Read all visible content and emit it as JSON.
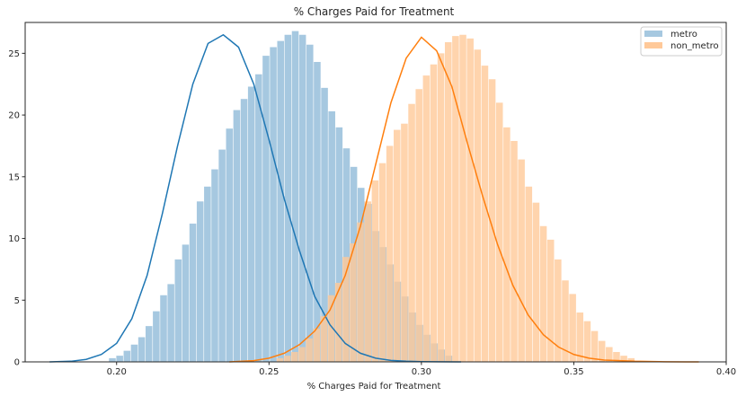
{
  "chart_data": {
    "type": "histogram_kde",
    "title": "% Charges Paid for Treatment",
    "xlabel": "% Charges Paid for Treatment",
    "ylabel": "",
    "xlim": [
      0.17,
      0.4
    ],
    "ylim": [
      0,
      27.5
    ],
    "xticks": [
      {
        "value": 0.2,
        "label": "0.20"
      },
      {
        "value": 0.25,
        "label": "0.25"
      },
      {
        "value": 0.3,
        "label": "0.30"
      },
      {
        "value": 0.35,
        "label": "0.35"
      },
      {
        "value": 0.4,
        "label": "0.40"
      }
    ],
    "yticks": [
      {
        "value": 0,
        "label": "0"
      },
      {
        "value": 5,
        "label": "5"
      },
      {
        "value": 10,
        "label": "10"
      },
      {
        "value": 15,
        "label": "15"
      },
      {
        "value": 20,
        "label": "20"
      },
      {
        "value": 25,
        "label": "25"
      }
    ],
    "grid": false,
    "legend_position": "top-right",
    "series": [
      {
        "name": "metro",
        "color": "#1f77b4",
        "bar_color": "#a6c8e0",
        "bin_width": 0.0024,
        "bins_start": 0.1975,
        "bar_heights": [
          0.3,
          0.5,
          0.9,
          1.4,
          2.0,
          2.9,
          4.1,
          5.4,
          6.3,
          8.3,
          9.5,
          11.2,
          13.0,
          14.2,
          15.6,
          17.2,
          18.9,
          20.4,
          21.3,
          22.3,
          23.3,
          24.8,
          25.5,
          26.0,
          26.5,
          26.8,
          26.5,
          25.7,
          24.3,
          22.2,
          20.3,
          19.0,
          17.3,
          15.8,
          14.1,
          12.8,
          10.6,
          9.3,
          7.9,
          6.5,
          5.3,
          4.0,
          3.0,
          2.2,
          1.5,
          1.0,
          0.5
        ],
        "kde_x": [
          0.178,
          0.185,
          0.19,
          0.195,
          0.2,
          0.205,
          0.21,
          0.215,
          0.22,
          0.225,
          0.23,
          0.235,
          0.24,
          0.245,
          0.25,
          0.255,
          0.26,
          0.265,
          0.27,
          0.275,
          0.28,
          0.285,
          0.29,
          0.295,
          0.3,
          0.305,
          0.313
        ],
        "kde_y": [
          0.0,
          0.05,
          0.2,
          0.6,
          1.5,
          3.5,
          7.0,
          12.0,
          17.5,
          22.5,
          25.8,
          26.5,
          25.5,
          22.5,
          18.0,
          13.2,
          9.0,
          5.3,
          3.0,
          1.5,
          0.7,
          0.3,
          0.12,
          0.05,
          0.02,
          0.01,
          0.0
        ]
      },
      {
        "name": "non_metro",
        "color": "#ff7f0e",
        "bar_color": "#ffc999",
        "bin_width": 0.0024,
        "bins_start": 0.2525,
        "bar_heights": [
          0.3,
          0.5,
          0.8,
          1.2,
          1.9,
          2.7,
          3.7,
          5.4,
          6.4,
          8.5,
          9.6,
          11.3,
          13.0,
          14.7,
          16.1,
          17.5,
          18.8,
          19.3,
          20.9,
          22.1,
          23.2,
          24.1,
          25.0,
          25.9,
          26.4,
          26.5,
          26.2,
          25.3,
          24.0,
          22.9,
          21.0,
          19.0,
          17.9,
          16.4,
          14.2,
          12.9,
          11.0,
          9.9,
          8.3,
          6.6,
          5.5,
          4.0,
          3.3,
          2.5,
          1.7,
          1.2,
          0.8,
          0.5,
          0.3
        ],
        "kde_x": [
          0.237,
          0.245,
          0.25,
          0.255,
          0.26,
          0.265,
          0.27,
          0.275,
          0.28,
          0.285,
          0.29,
          0.295,
          0.3,
          0.305,
          0.31,
          0.315,
          0.32,
          0.325,
          0.33,
          0.335,
          0.34,
          0.345,
          0.35,
          0.355,
          0.36,
          0.37,
          0.38,
          0.391
        ],
        "kde_y": [
          0.0,
          0.1,
          0.3,
          0.7,
          1.4,
          2.5,
          4.2,
          7.0,
          11.0,
          16.0,
          21.0,
          24.6,
          26.3,
          25.2,
          22.3,
          17.8,
          13.5,
          9.5,
          6.2,
          3.8,
          2.2,
          1.2,
          0.6,
          0.3,
          0.15,
          0.05,
          0.01,
          0.0
        ]
      }
    ]
  }
}
